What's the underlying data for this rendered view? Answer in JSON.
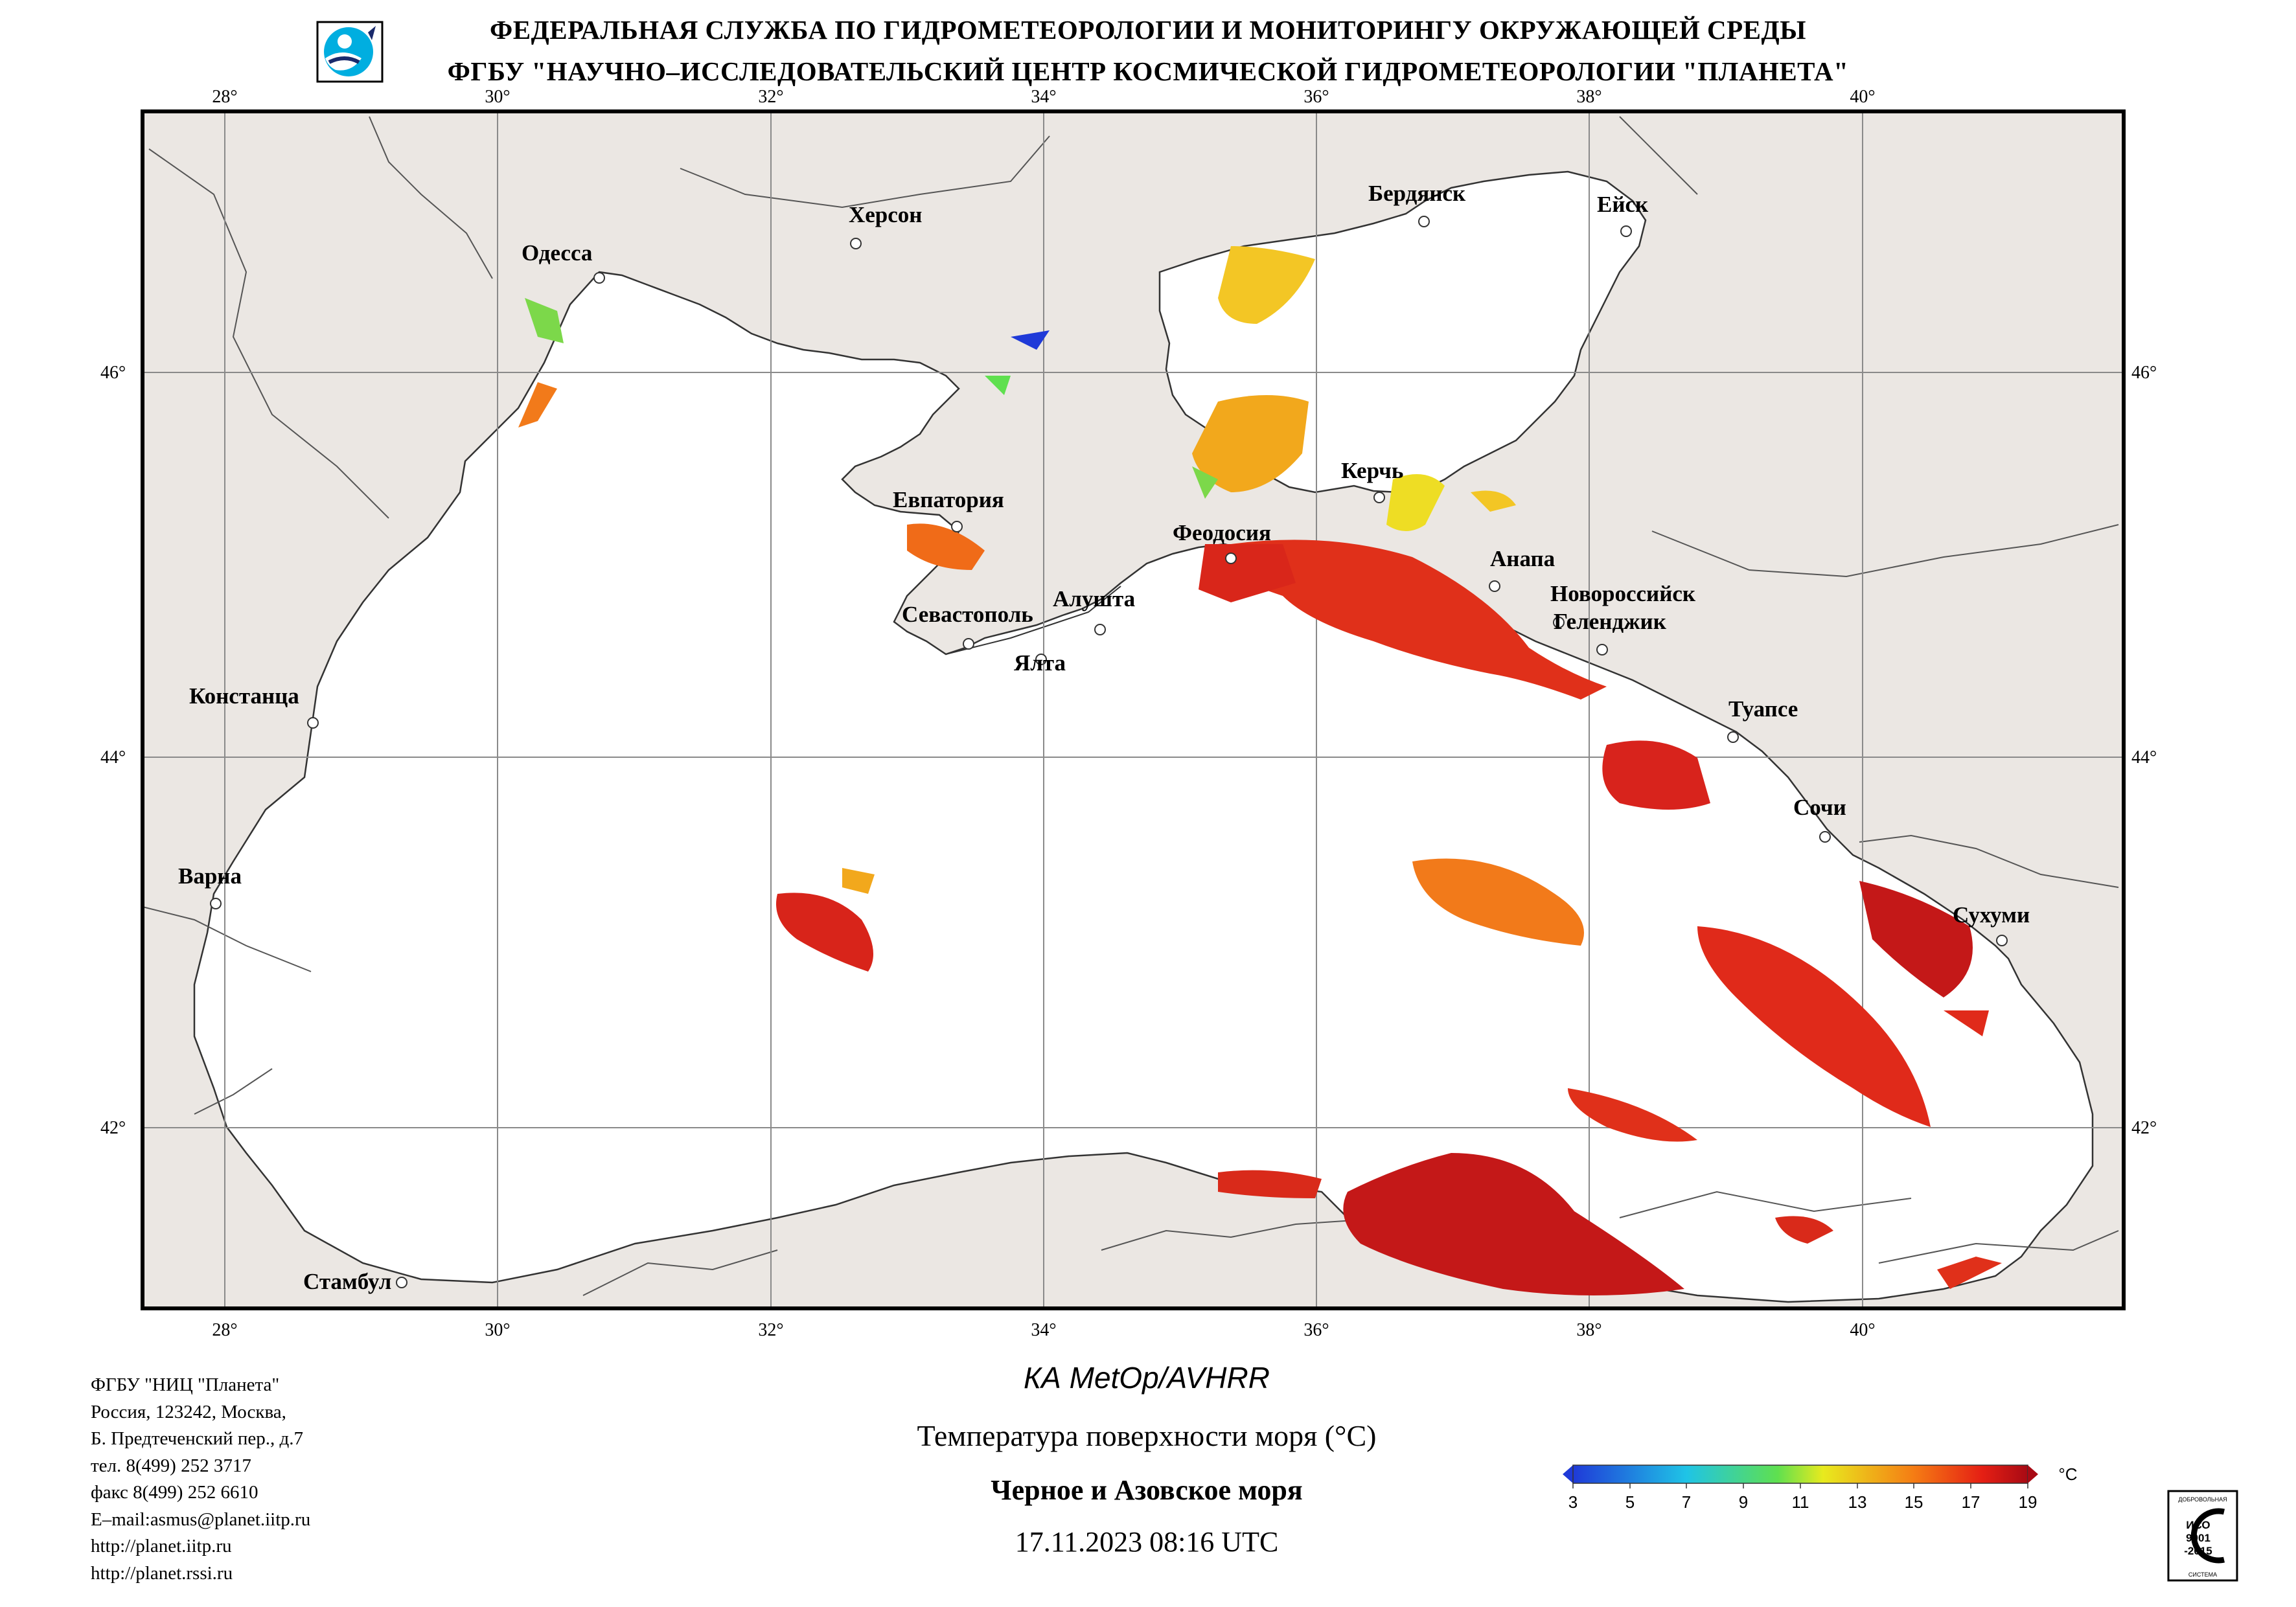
{
  "header": {
    "line1": "ФЕДЕРАЛЬНАЯ СЛУЖБА ПО ГИДРОМЕТЕОРОЛОГИИ И МОНИТОРИНГУ ОКРУЖАЮЩЕЙ СРЕДЫ",
    "line2": "ФГБУ \"НАУЧНО–ИССЛЕДОВАТЕЛЬСКИЙ ЦЕНТР КОСМИЧЕСКОЙ ГИДРОМЕТЕОРОЛОГИИ \"ПЛАНЕТА\""
  },
  "map": {
    "lon_labels": [
      "28°",
      "30°",
      "32°",
      "34°",
      "36°",
      "38°",
      "40°"
    ],
    "lat_labels": [
      "46°",
      "44°",
      "42°"
    ],
    "lon_range": [
      27.5,
      42.0
    ],
    "lat_range": [
      41.0,
      47.4
    ],
    "colors": {
      "land": "#ebe7e3",
      "sea": "#ffffff",
      "grid": "#8a8a8a",
      "coast": "#333333"
    },
    "cities": [
      {
        "name": "Одесса",
        "lon": 30.72,
        "lat": 46.48
      },
      {
        "name": "Херсон",
        "lon": 32.62,
        "lat": 46.64
      },
      {
        "name": "Бердянск",
        "lon": 36.8,
        "lat": 46.76
      },
      {
        "name": "Ейск",
        "lon": 38.27,
        "lat": 46.71
      },
      {
        "name": "Евпатория",
        "lon": 33.37,
        "lat": 45.19
      },
      {
        "name": "Керчь",
        "lon": 36.47,
        "lat": 45.36
      },
      {
        "name": "Феодосия",
        "lon": 35.38,
        "lat": 45.03
      },
      {
        "name": "Анапа",
        "lon": 37.32,
        "lat": 44.89
      },
      {
        "name": "Новороссийск",
        "lon": 37.77,
        "lat": 44.72
      },
      {
        "name": "Геленджик",
        "lon": 38.06,
        "lat": 44.56
      },
      {
        "name": "Алушта",
        "lon": 34.41,
        "lat": 44.67
      },
      {
        "name": "Севастополь",
        "lon": 33.52,
        "lat": 44.6
      },
      {
        "name": "Ялта",
        "lon": 34.16,
        "lat": 44.49
      },
      {
        "name": "Констанца",
        "lon": 28.65,
        "lat": 44.17
      },
      {
        "name": "Туапсе",
        "lon": 39.07,
        "lat": 44.1
      },
      {
        "name": "Сочи",
        "lon": 39.73,
        "lat": 43.6
      },
      {
        "name": "Варна",
        "lon": 27.92,
        "lat": 43.21
      },
      {
        "name": "Сухуми",
        "lon": 41.02,
        "lat": 43.0
      },
      {
        "name": "Стамбул",
        "lon": 29.0,
        "lat": 41.01
      }
    ],
    "colorbar": {
      "ticks": [
        "3",
        "5",
        "7",
        "9",
        "11",
        "13",
        "15",
        "17",
        "19"
      ],
      "unit": "°C",
      "range": [
        3,
        19
      ]
    }
  },
  "footer": {
    "address": [
      "ФГБУ \"НИЦ \"Планета\"",
      "Россия, 123242, Москва,",
      "Б. Предтеченский пер., д.7",
      "тел. 8(499) 252 3717",
      "факс 8(499) 252 6610",
      "E–mail:asmus@planet.iitp.ru",
      "http://planet.iitp.ru",
      "http://planet.rssi.ru"
    ],
    "satellite": "КА MetOp/AVHRR",
    "parameter": "Температура поверхности моря (°C)",
    "sea": "Черное и Азовское моря",
    "datetime": "17.11.2023 08:16 UTC"
  },
  "cert": {
    "top": "ДОБРОВОЛЬНАЯ",
    "middle1": "ИСО",
    "middle2": "9001",
    "middle3": "-2015",
    "bottom": "СИСТЕМА"
  }
}
